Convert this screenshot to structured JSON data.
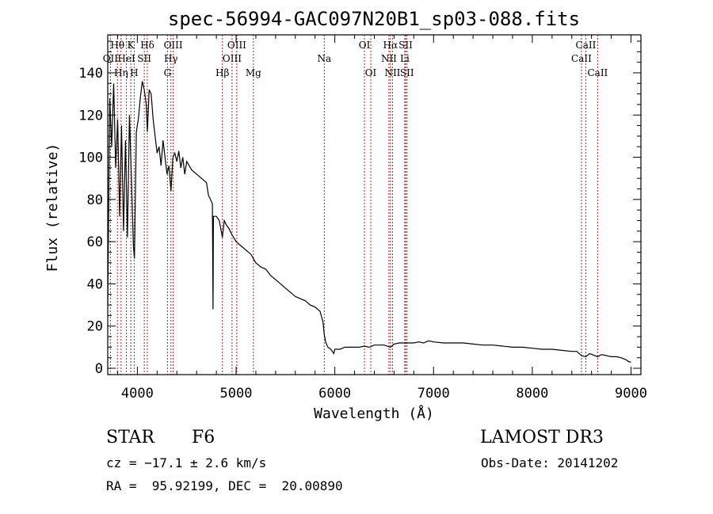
{
  "chart_data": {
    "type": "line",
    "title": "spec-56994-GAC097N20B1_sp03-088.fits",
    "xlabel": "Wavelength (Å)",
    "ylabel": "Flux (relative)",
    "xlim": [
      3700,
      9100
    ],
    "ylim": [
      -3,
      158
    ],
    "xticks": [
      4000,
      5000,
      6000,
      7000,
      8000,
      9000
    ],
    "yticks": [
      0,
      20,
      40,
      60,
      80,
      100,
      120,
      140
    ],
    "series": [
      {
        "name": "flux",
        "points": [
          [
            3700,
            30
          ],
          [
            3720,
            128
          ],
          [
            3740,
            105
          ],
          [
            3760,
            135
          ],
          [
            3780,
            95
          ],
          [
            3800,
            118
          ],
          [
            3820,
            72
          ],
          [
            3840,
            115
          ],
          [
            3860,
            65
          ],
          [
            3880,
            108
          ],
          [
            3900,
            62
          ],
          [
            3920,
            120
          ],
          [
            3940,
            90
          ],
          [
            3960,
            58
          ],
          [
            3970,
            52
          ],
          [
            3990,
            112
          ],
          [
            4010,
            118
          ],
          [
            4030,
            128
          ],
          [
            4050,
            136
          ],
          [
            4070,
            132
          ],
          [
            4090,
            125
          ],
          [
            4101,
            112
          ],
          [
            4120,
            132
          ],
          [
            4140,
            130
          ],
          [
            4160,
            118
          ],
          [
            4180,
            110
          ],
          [
            4200,
            102
          ],
          [
            4220,
            105
          ],
          [
            4240,
            96
          ],
          [
            4260,
            108
          ],
          [
            4280,
            100
          ],
          [
            4300,
            92
          ],
          [
            4320,
            96
          ],
          [
            4340,
            84
          ],
          [
            4360,
            100
          ],
          [
            4380,
            102
          ],
          [
            4400,
            98
          ],
          [
            4420,
            103
          ],
          [
            4440,
            95
          ],
          [
            4460,
            100
          ],
          [
            4480,
            92
          ],
          [
            4500,
            98
          ],
          [
            4550,
            94
          ],
          [
            4600,
            92
          ],
          [
            4650,
            90
          ],
          [
            4700,
            88
          ],
          [
            4720,
            82
          ],
          [
            4740,
            80
          ],
          [
            4760,
            78
          ],
          [
            4766,
            28
          ],
          [
            4770,
            72
          ],
          [
            4800,
            72
          ],
          [
            4830,
            70
          ],
          [
            4861,
            62
          ],
          [
            4880,
            70
          ],
          [
            4900,
            68
          ],
          [
            4930,
            66
          ],
          [
            4950,
            64
          ],
          [
            5000,
            60
          ],
          [
            5050,
            58
          ],
          [
            5100,
            56
          ],
          [
            5150,
            54
          ],
          [
            5200,
            50
          ],
          [
            5250,
            48
          ],
          [
            5300,
            47
          ],
          [
            5350,
            44
          ],
          [
            5400,
            42
          ],
          [
            5450,
            40
          ],
          [
            5500,
            38
          ],
          [
            5550,
            36
          ],
          [
            5600,
            34
          ],
          [
            5650,
            33
          ],
          [
            5700,
            32
          ],
          [
            5750,
            30
          ],
          [
            5800,
            29
          ],
          [
            5850,
            27
          ],
          [
            5880,
            22
          ],
          [
            5893,
            16
          ],
          [
            5910,
            12
          ],
          [
            5930,
            10
          ],
          [
            5960,
            9
          ],
          [
            5990,
            7
          ],
          [
            6000,
            9
          ],
          [
            6050,
            9
          ],
          [
            6100,
            10
          ],
          [
            6150,
            10
          ],
          [
            6200,
            10
          ],
          [
            6250,
            10
          ],
          [
            6300,
            10.5
          ],
          [
            6350,
            10
          ],
          [
            6400,
            11
          ],
          [
            6450,
            11
          ],
          [
            6500,
            11
          ],
          [
            6563,
            10
          ],
          [
            6600,
            11.5
          ],
          [
            6650,
            12
          ],
          [
            6700,
            12
          ],
          [
            6750,
            12
          ],
          [
            6800,
            12
          ],
          [
            6850,
            12.5
          ],
          [
            6900,
            12
          ],
          [
            6950,
            13
          ],
          [
            7000,
            12.5
          ],
          [
            7100,
            12
          ],
          [
            7200,
            12
          ],
          [
            7300,
            12
          ],
          [
            7400,
            11.5
          ],
          [
            7500,
            11
          ],
          [
            7600,
            11
          ],
          [
            7700,
            10.5
          ],
          [
            7800,
            10
          ],
          [
            7900,
            10
          ],
          [
            8000,
            9.5
          ],
          [
            8100,
            9
          ],
          [
            8200,
            9
          ],
          [
            8300,
            8.5
          ],
          [
            8400,
            8
          ],
          [
            8450,
            8
          ],
          [
            8498,
            6
          ],
          [
            8542,
            5.5
          ],
          [
            8580,
            7
          ],
          [
            8662,
            5.5
          ],
          [
            8700,
            6.5
          ],
          [
            8750,
            6
          ],
          [
            8800,
            5.5
          ],
          [
            8850,
            5.5
          ],
          [
            8900,
            5
          ],
          [
            8950,
            4
          ],
          [
            8980,
            3
          ],
          [
            9000,
            3
          ]
        ]
      }
    ],
    "spectral_lines": [
      {
        "label": "Hθ",
        "wl": 3798,
        "row": 1
      },
      {
        "label": "OII",
        "wl": 3727,
        "row": 2
      },
      {
        "label": "Hη",
        "wl": 3835,
        "row": 3
      },
      {
        "label": "K",
        "wl": 3934,
        "row": 1
      },
      {
        "label": "HeI",
        "wl": 3889,
        "row": 2
      },
      {
        "label": "H",
        "wl": 3968,
        "row": 3
      },
      {
        "label": "SII",
        "wl": 4070,
        "row": 2
      },
      {
        "label": "Hδ",
        "wl": 4101,
        "row": 1
      },
      {
        "label": "OIII",
        "wl": 4363,
        "row": 1
      },
      {
        "label": "Hγ",
        "wl": 4340,
        "row": 2
      },
      {
        "label": "G",
        "wl": 4305,
        "row": 3
      },
      {
        "label": "OIII",
        "wl": 5007,
        "row": 1
      },
      {
        "label": "OIII",
        "wl": 4959,
        "row": 2
      },
      {
        "label": "Hβ",
        "wl": 4861,
        "row": 3
      },
      {
        "label": "Mg",
        "wl": 5175,
        "row": 3
      },
      {
        "label": "Na",
        "wl": 5893,
        "row": 2
      },
      {
        "label": "OI",
        "wl": 6300,
        "row": 1
      },
      {
        "label": "OI",
        "wl": 6364,
        "row": 3
      },
      {
        "label": "Hα",
        "wl": 6563,
        "row": 1
      },
      {
        "label": "NII",
        "wl": 6548,
        "row": 2
      },
      {
        "label": "NII",
        "wl": 6584,
        "row": 3
      },
      {
        "label": "SII",
        "wl": 6717,
        "row": 1
      },
      {
        "label": "Li",
        "wl": 6708,
        "row": 2
      },
      {
        "label": "SII",
        "wl": 6731,
        "row": 3
      },
      {
        "label": "CaII",
        "wl": 8542,
        "row": 1
      },
      {
        "label": "CaII",
        "wl": 8498,
        "row": 2
      },
      {
        "label": "CaII",
        "wl": 8662,
        "row": 3
      }
    ]
  },
  "info": {
    "object_class": "STAR",
    "subclass": "F6",
    "survey": "LAMOST DR3",
    "cz": "cz = −17.1 ± 2.6 km/s",
    "obs_date": "Obs-Date: 20141202",
    "coords": "RA =  95.92199, DEC =  20.00890"
  }
}
